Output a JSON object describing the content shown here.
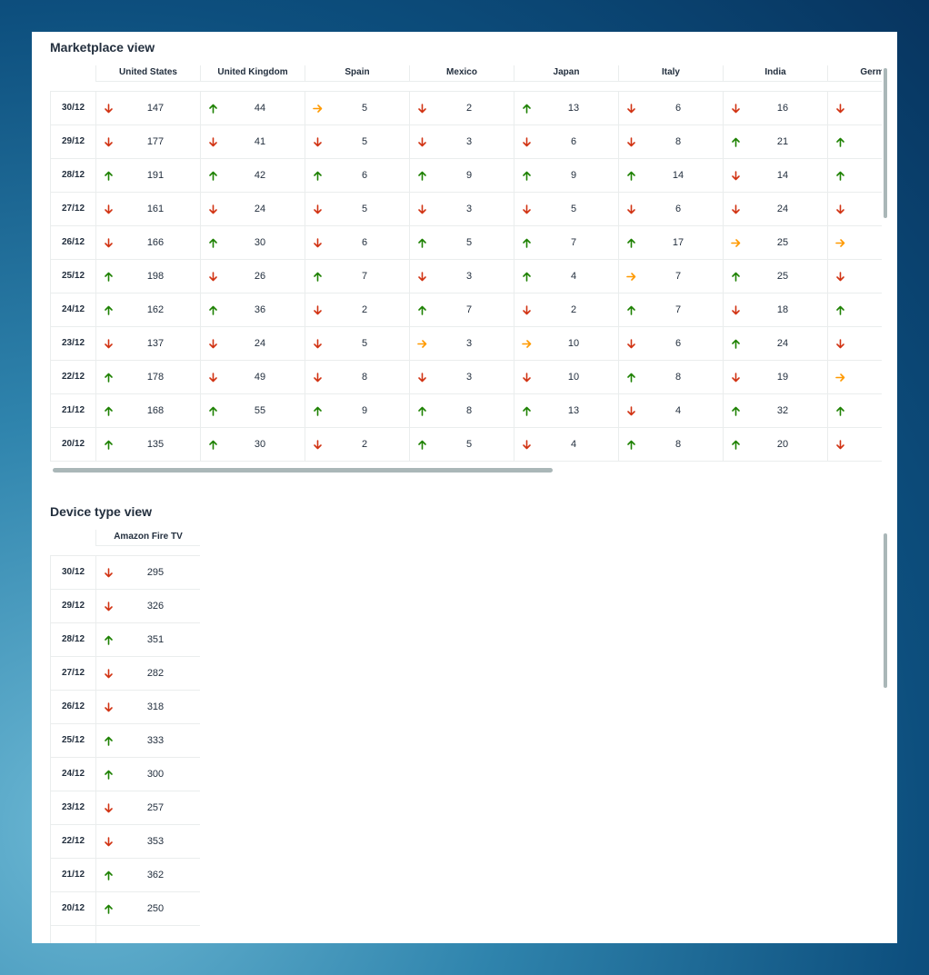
{
  "marketplace": {
    "title": "Marketplace view",
    "columns": [
      "United States",
      "United Kingdom",
      "Spain",
      "Mexico",
      "Japan",
      "Italy",
      "India",
      "Germany"
    ],
    "rows": [
      {
        "date": "30/12",
        "cells": [
          {
            "trend": "down",
            "value": 147
          },
          {
            "trend": "up",
            "value": 44
          },
          {
            "trend": "flat",
            "value": 5
          },
          {
            "trend": "down",
            "value": 2
          },
          {
            "trend": "up",
            "value": 13
          },
          {
            "trend": "down",
            "value": 6
          },
          {
            "trend": "down",
            "value": 16
          },
          {
            "trend": "down"
          }
        ]
      },
      {
        "date": "29/12",
        "cells": [
          {
            "trend": "down",
            "value": 177
          },
          {
            "trend": "down",
            "value": 41
          },
          {
            "trend": "down",
            "value": 5
          },
          {
            "trend": "down",
            "value": 3
          },
          {
            "trend": "down",
            "value": 6
          },
          {
            "trend": "down",
            "value": 8
          },
          {
            "trend": "up",
            "value": 21
          },
          {
            "trend": "up"
          }
        ]
      },
      {
        "date": "28/12",
        "cells": [
          {
            "trend": "up",
            "value": 191
          },
          {
            "trend": "up",
            "value": 42
          },
          {
            "trend": "up",
            "value": 6
          },
          {
            "trend": "up",
            "value": 9
          },
          {
            "trend": "up",
            "value": 9
          },
          {
            "trend": "up",
            "value": 14
          },
          {
            "trend": "down",
            "value": 14
          },
          {
            "trend": "up"
          }
        ]
      },
      {
        "date": "27/12",
        "cells": [
          {
            "trend": "down",
            "value": 161
          },
          {
            "trend": "down",
            "value": 24
          },
          {
            "trend": "down",
            "value": 5
          },
          {
            "trend": "down",
            "value": 3
          },
          {
            "trend": "down",
            "value": 5
          },
          {
            "trend": "down",
            "value": 6
          },
          {
            "trend": "down",
            "value": 24
          },
          {
            "trend": "down"
          }
        ]
      },
      {
        "date": "26/12",
        "cells": [
          {
            "trend": "down",
            "value": 166
          },
          {
            "trend": "up",
            "value": 30
          },
          {
            "trend": "down",
            "value": 6
          },
          {
            "trend": "up",
            "value": 5
          },
          {
            "trend": "up",
            "value": 7
          },
          {
            "trend": "up",
            "value": 17
          },
          {
            "trend": "flat",
            "value": 25
          },
          {
            "trend": "flat"
          }
        ]
      },
      {
        "date": "25/12",
        "cells": [
          {
            "trend": "up",
            "value": 198
          },
          {
            "trend": "down",
            "value": 26
          },
          {
            "trend": "up",
            "value": 7
          },
          {
            "trend": "down",
            "value": 3
          },
          {
            "trend": "up",
            "value": 4
          },
          {
            "trend": "flat",
            "value": 7
          },
          {
            "trend": "up",
            "value": 25
          },
          {
            "trend": "down"
          }
        ]
      },
      {
        "date": "24/12",
        "cells": [
          {
            "trend": "up",
            "value": 162
          },
          {
            "trend": "up",
            "value": 36
          },
          {
            "trend": "down",
            "value": 2
          },
          {
            "trend": "up",
            "value": 7
          },
          {
            "trend": "down",
            "value": 2
          },
          {
            "trend": "up",
            "value": 7
          },
          {
            "trend": "down",
            "value": 18
          },
          {
            "trend": "up"
          }
        ]
      },
      {
        "date": "23/12",
        "cells": [
          {
            "trend": "down",
            "value": 137
          },
          {
            "trend": "down",
            "value": 24
          },
          {
            "trend": "down",
            "value": 5
          },
          {
            "trend": "flat",
            "value": 3
          },
          {
            "trend": "flat",
            "value": 10
          },
          {
            "trend": "down",
            "value": 6
          },
          {
            "trend": "up",
            "value": 24
          },
          {
            "trend": "down"
          }
        ]
      },
      {
        "date": "22/12",
        "cells": [
          {
            "trend": "up",
            "value": 178
          },
          {
            "trend": "down",
            "value": 49
          },
          {
            "trend": "down",
            "value": 8
          },
          {
            "trend": "down",
            "value": 3
          },
          {
            "trend": "down",
            "value": 10
          },
          {
            "trend": "up",
            "value": 8
          },
          {
            "trend": "down",
            "value": 19
          },
          {
            "trend": "flat"
          }
        ]
      },
      {
        "date": "21/12",
        "cells": [
          {
            "trend": "up",
            "value": 168
          },
          {
            "trend": "up",
            "value": 55
          },
          {
            "trend": "up",
            "value": 9
          },
          {
            "trend": "up",
            "value": 8
          },
          {
            "trend": "up",
            "value": 13
          },
          {
            "trend": "down",
            "value": 4
          },
          {
            "trend": "up",
            "value": 32
          },
          {
            "trend": "up"
          }
        ]
      },
      {
        "date": "20/12",
        "cells": [
          {
            "trend": "up",
            "value": 135
          },
          {
            "trend": "up",
            "value": 30
          },
          {
            "trend": "down",
            "value": 2
          },
          {
            "trend": "up",
            "value": 5
          },
          {
            "trend": "down",
            "value": 4
          },
          {
            "trend": "up",
            "value": 8
          },
          {
            "trend": "up",
            "value": 20
          },
          {
            "trend": "down"
          }
        ]
      }
    ]
  },
  "device": {
    "title": "Device type view",
    "columns": [
      "Amazon Fire TV"
    ],
    "rows": [
      {
        "date": "30/12",
        "cells": [
          {
            "trend": "down",
            "value": 295
          }
        ]
      },
      {
        "date": "29/12",
        "cells": [
          {
            "trend": "down",
            "value": 326
          }
        ]
      },
      {
        "date": "28/12",
        "cells": [
          {
            "trend": "up",
            "value": 351
          }
        ]
      },
      {
        "date": "27/12",
        "cells": [
          {
            "trend": "down",
            "value": 282
          }
        ]
      },
      {
        "date": "26/12",
        "cells": [
          {
            "trend": "down",
            "value": 318
          }
        ]
      },
      {
        "date": "25/12",
        "cells": [
          {
            "trend": "up",
            "value": 333
          }
        ]
      },
      {
        "date": "24/12",
        "cells": [
          {
            "trend": "up",
            "value": 300
          }
        ]
      },
      {
        "date": "23/12",
        "cells": [
          {
            "trend": "down",
            "value": 257
          }
        ]
      },
      {
        "date": "22/12",
        "cells": [
          {
            "trend": "down",
            "value": 353
          }
        ]
      },
      {
        "date": "21/12",
        "cells": [
          {
            "trend": "up",
            "value": 362
          }
        ]
      },
      {
        "date": "20/12",
        "cells": [
          {
            "trend": "up",
            "value": 250
          }
        ]
      }
    ]
  }
}
